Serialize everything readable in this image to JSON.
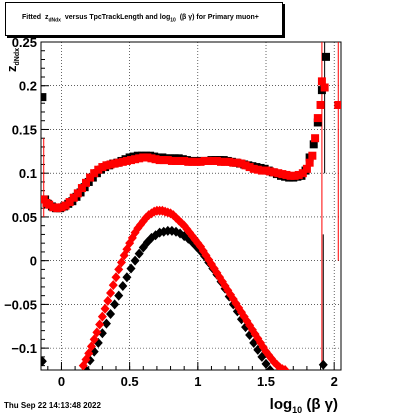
{
  "header": {
    "title_prefix": "Fitted",
    "title_symbol": "z",
    "title_symbol_sub": "dNdx",
    "title_suffix": "versus TpcTrackLength and log",
    "title_log_sub": "10",
    "title_end": "(β γ) for Primary muon+"
  },
  "footer": {
    "timestamp": "Thu Sep 22 14:13:48 2022"
  },
  "colors": {
    "black_series": "#000000",
    "red_series": "#ff0000"
  },
  "chart_data": {
    "type": "scatter",
    "title": "Fitted z_dNdx versus TpcTrackLength and log_10 (β γ) for Primary muon+",
    "xlabel": "log10(β γ)",
    "ylabel": "z_dNdx",
    "xlim": [
      -0.15,
      2.05
    ],
    "ylim": [
      -0.125,
      0.25
    ],
    "x_ticks": [
      0,
      0.5,
      1,
      1.5,
      2
    ],
    "x_tick_labels": [
      "0",
      "0.5",
      "1",
      "1.5",
      "2"
    ],
    "y_ticks": [
      -0.1,
      -0.05,
      0,
      0.05,
      0.1,
      0.15,
      0.2,
      0.25
    ],
    "y_tick_labels": [
      "−0.1",
      "−0.05",
      "0",
      "0.05",
      "0.1",
      "0.15",
      "0.2",
      "0.25"
    ],
    "grid": true,
    "series": [
      {
        "color": "#000000",
        "marker": "square",
        "x": [
          -0.14,
          -0.12,
          -0.1,
          -0.07,
          -0.04,
          -0.01,
          0.02,
          0.05,
          0.08,
          0.11,
          0.14,
          0.17,
          0.2,
          0.23,
          0.26,
          0.29,
          0.32,
          0.35,
          0.38,
          0.41,
          0.44,
          0.47,
          0.5,
          0.53,
          0.56,
          0.59,
          0.62,
          0.65,
          0.68,
          0.71,
          0.74,
          0.77,
          0.8,
          0.83,
          0.86,
          0.89,
          0.92,
          0.95,
          0.98,
          1.01,
          1.04,
          1.07,
          1.1,
          1.13,
          1.16,
          1.19,
          1.22,
          1.25,
          1.28,
          1.31,
          1.34,
          1.37,
          1.4,
          1.43,
          1.46,
          1.49,
          1.52,
          1.55,
          1.58,
          1.61,
          1.64,
          1.67,
          1.7,
          1.73,
          1.76,
          1.79,
          1.82,
          1.85,
          1.88,
          1.91,
          1.94
        ],
        "y": [
          0.187,
          0.07,
          0.065,
          0.062,
          0.06,
          0.06,
          0.062,
          0.065,
          0.068,
          0.073,
          0.078,
          0.084,
          0.09,
          0.095,
          0.1,
          0.104,
          0.107,
          0.109,
          0.111,
          0.112,
          0.114,
          0.116,
          0.118,
          0.119,
          0.12,
          0.12,
          0.12,
          0.12,
          0.119,
          0.118,
          0.118,
          0.117,
          0.117,
          0.117,
          0.117,
          0.116,
          0.115,
          0.114,
          0.114,
          0.114,
          0.114,
          0.114,
          0.115,
          0.115,
          0.115,
          0.115,
          0.114,
          0.113,
          0.112,
          0.111,
          0.11,
          0.109,
          0.108,
          0.107,
          0.106,
          0.105,
          0.103,
          0.101,
          0.099,
          0.097,
          0.096,
          0.095,
          0.095,
          0.096,
          0.097,
          0.103,
          0.118,
          0.133,
          0.158,
          0.195,
          0.233
        ]
      },
      {
        "color": "#000000",
        "marker": "diamond",
        "x": [
          -0.14,
          0.18,
          0.21,
          0.24,
          0.27,
          0.3,
          0.33,
          0.36,
          0.39,
          0.42,
          0.45,
          0.48,
          0.51,
          0.54,
          0.57,
          0.6,
          0.63,
          0.66,
          0.69,
          0.72,
          0.75,
          0.78,
          0.81,
          0.84,
          0.87,
          0.9,
          0.93,
          0.96,
          0.99,
          1.02,
          1.05,
          1.08,
          1.11,
          1.14,
          1.17,
          1.2,
          1.23,
          1.26,
          1.29,
          1.32,
          1.35,
          1.38,
          1.41,
          1.44,
          1.47,
          1.5,
          1.53,
          1.56,
          1.59,
          1.62,
          1.92
        ],
        "y": [
          -0.115,
          -0.125,
          -0.114,
          -0.104,
          -0.094,
          -0.083,
          -0.072,
          -0.061,
          -0.05,
          -0.04,
          -0.029,
          -0.019,
          -0.009,
          0.0,
          0.008,
          0.015,
          0.021,
          0.026,
          0.029,
          0.032,
          0.033,
          0.034,
          0.034,
          0.033,
          0.031,
          0.028,
          0.025,
          0.021,
          0.016,
          0.011,
          0.005,
          -0.002,
          -0.009,
          -0.016,
          -0.024,
          -0.032,
          -0.041,
          -0.05,
          -0.058,
          -0.067,
          -0.076,
          -0.085,
          -0.094,
          -0.102,
          -0.11,
          -0.118,
          -0.125,
          -0.132,
          -0.138,
          -0.144,
          -0.119
        ]
      },
      {
        "color": "#ff0000",
        "marker": "square",
        "x": [
          -0.13,
          -0.11,
          -0.09,
          -0.06,
          -0.03,
          0.0,
          0.03,
          0.06,
          0.09,
          0.12,
          0.15,
          0.18,
          0.21,
          0.24,
          0.27,
          0.3,
          0.33,
          0.36,
          0.39,
          0.42,
          0.45,
          0.48,
          0.51,
          0.54,
          0.57,
          0.6,
          0.63,
          0.66,
          0.69,
          0.72,
          0.75,
          0.78,
          0.81,
          0.84,
          0.87,
          0.9,
          0.93,
          0.96,
          0.99,
          1.02,
          1.05,
          1.08,
          1.11,
          1.14,
          1.17,
          1.2,
          1.23,
          1.26,
          1.29,
          1.32,
          1.35,
          1.38,
          1.41,
          1.44,
          1.47,
          1.5,
          1.53,
          1.56,
          1.59,
          1.62,
          1.65,
          1.68,
          1.71,
          1.74,
          1.77,
          1.8,
          1.82,
          1.84,
          1.86,
          1.88,
          1.9,
          1.91,
          1.93,
          2.03
        ],
        "y": [
          0.07,
          0.066,
          0.064,
          0.061,
          0.06,
          0.061,
          0.063,
          0.067,
          0.072,
          0.077,
          0.083,
          0.089,
          0.095,
          0.1,
          0.104,
          0.107,
          0.109,
          0.11,
          0.111,
          0.112,
          0.113,
          0.114,
          0.115,
          0.116,
          0.117,
          0.118,
          0.118,
          0.117,
          0.116,
          0.115,
          0.115,
          0.115,
          0.114,
          0.114,
          0.114,
          0.114,
          0.113,
          0.113,
          0.113,
          0.113,
          0.114,
          0.114,
          0.114,
          0.114,
          0.113,
          0.113,
          0.113,
          0.112,
          0.112,
          0.111,
          0.109,
          0.107,
          0.105,
          0.104,
          0.103,
          0.103,
          0.102,
          0.101,
          0.1,
          0.099,
          0.098,
          0.097,
          0.097,
          0.098,
          0.1,
          0.105,
          0.112,
          0.12,
          0.14,
          0.163,
          0.178,
          0.205,
          0.198,
          0.178
        ]
      },
      {
        "color": "#ff0000",
        "marker": "diamond",
        "x": [
          0.16,
          0.18,
          0.2,
          0.22,
          0.24,
          0.26,
          0.28,
          0.3,
          0.32,
          0.34,
          0.36,
          0.38,
          0.4,
          0.42,
          0.44,
          0.46,
          0.48,
          0.5,
          0.52,
          0.54,
          0.56,
          0.58,
          0.6,
          0.62,
          0.64,
          0.66,
          0.68,
          0.7,
          0.72,
          0.74,
          0.76,
          0.78,
          0.8,
          0.82,
          0.84,
          0.86,
          0.88,
          0.9,
          0.92,
          0.94,
          0.96,
          0.98,
          1.0,
          1.02,
          1.04,
          1.06,
          1.08,
          1.1,
          1.12,
          1.14,
          1.16,
          1.18,
          1.2,
          1.22,
          1.24,
          1.26,
          1.28,
          1.3,
          1.32,
          1.34,
          1.36,
          1.38,
          1.4,
          1.42,
          1.44,
          1.46,
          1.48,
          1.5,
          1.52,
          1.54,
          1.56,
          1.58,
          1.6,
          1.62,
          1.64
        ],
        "y": [
          -0.12,
          -0.113,
          -0.106,
          -0.098,
          -0.09,
          -0.082,
          -0.073,
          -0.064,
          -0.055,
          -0.046,
          -0.037,
          -0.028,
          -0.019,
          -0.01,
          -0.002,
          0.006,
          0.013,
          0.02,
          0.026,
          0.032,
          0.037,
          0.041,
          0.045,
          0.049,
          0.052,
          0.054,
          0.056,
          0.057,
          0.057,
          0.057,
          0.056,
          0.055,
          0.054,
          0.052,
          0.049,
          0.046,
          0.043,
          0.04,
          0.036,
          0.032,
          0.028,
          0.024,
          0.02,
          0.016,
          0.011,
          0.006,
          0.001,
          -0.004,
          -0.009,
          -0.014,
          -0.019,
          -0.024,
          -0.029,
          -0.034,
          -0.039,
          -0.044,
          -0.049,
          -0.054,
          -0.059,
          -0.064,
          -0.069,
          -0.074,
          -0.079,
          -0.084,
          -0.089,
          -0.094,
          -0.099,
          -0.104,
          -0.108,
          -0.112,
          -0.116,
          -0.119,
          -0.122,
          -0.124,
          -0.125
        ]
      }
    ]
  }
}
